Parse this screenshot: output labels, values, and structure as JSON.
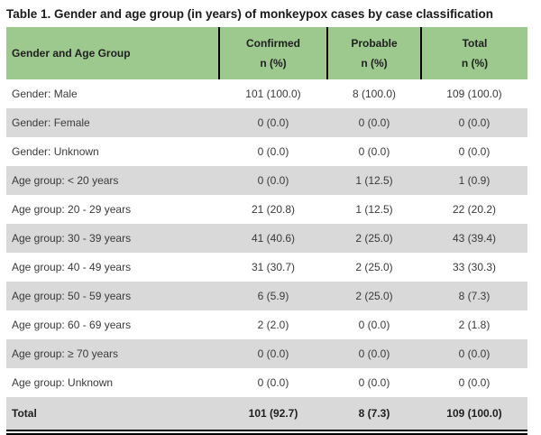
{
  "title": "Table 1. Gender and age group (in years) of monkeypox cases by case classification",
  "colors": {
    "header_green": "#9DC98E",
    "row_gray": "#D9D9D9",
    "row_white": "#FFFFFF",
    "rule_black": "#000000"
  },
  "table": {
    "columns": [
      {
        "label": "Gender and Age Group",
        "sub": ""
      },
      {
        "label": "Confirmed",
        "sub": "n (%)"
      },
      {
        "label": "Probable",
        "sub": "n (%)"
      },
      {
        "label": "Total",
        "sub": "n (%)"
      }
    ],
    "rows": [
      {
        "label": "Gender: Male",
        "confirmed": "101 (100.0)",
        "probable": "8 (100.0)",
        "total": "109 (100.0)"
      },
      {
        "label": "Gender: Female",
        "confirmed": "0 (0.0)",
        "probable": "0 (0.0)",
        "total": "0 (0.0)"
      },
      {
        "label": "Gender: Unknown",
        "confirmed": "0 (0.0)",
        "probable": "0 (0.0)",
        "total": "0 (0.0)"
      },
      {
        "label": "Age group: < 20 years",
        "confirmed": "0 (0.0)",
        "probable": "1 (12.5)",
        "total": "1 (0.9)"
      },
      {
        "label": "Age group: 20 - 29 years",
        "confirmed": "21 (20.8)",
        "probable": "1 (12.5)",
        "total": "22 (20.2)"
      },
      {
        "label": "Age group: 30 - 39 years",
        "confirmed": "41 (40.6)",
        "probable": "2 (25.0)",
        "total": "43 (39.4)"
      },
      {
        "label": "Age group: 40 - 49 years",
        "confirmed": "31 (30.7)",
        "probable": "2 (25.0)",
        "total": "33 (30.3)"
      },
      {
        "label": "Age group: 50 - 59 years",
        "confirmed": "6 (5.9)",
        "probable": "2 (25.0)",
        "total": "8 (7.3)"
      },
      {
        "label": "Age group: 60 - 69 years",
        "confirmed": "2 (2.0)",
        "probable": "0 (0.0)",
        "total": "2 (1.8)"
      },
      {
        "label": "Age group: ≥ 70 years",
        "confirmed": "0 (0.0)",
        "probable": "0 (0.0)",
        "total": "0 (0.0)"
      },
      {
        "label": "Age group: Unknown",
        "confirmed": "0 (0.0)",
        "probable": "0 (0.0)",
        "total": "0 (0.0)"
      }
    ],
    "total_row": {
      "label": "Total",
      "confirmed": "101 (92.7)",
      "probable": "8 (7.3)",
      "total": "109 (100.0)"
    }
  }
}
